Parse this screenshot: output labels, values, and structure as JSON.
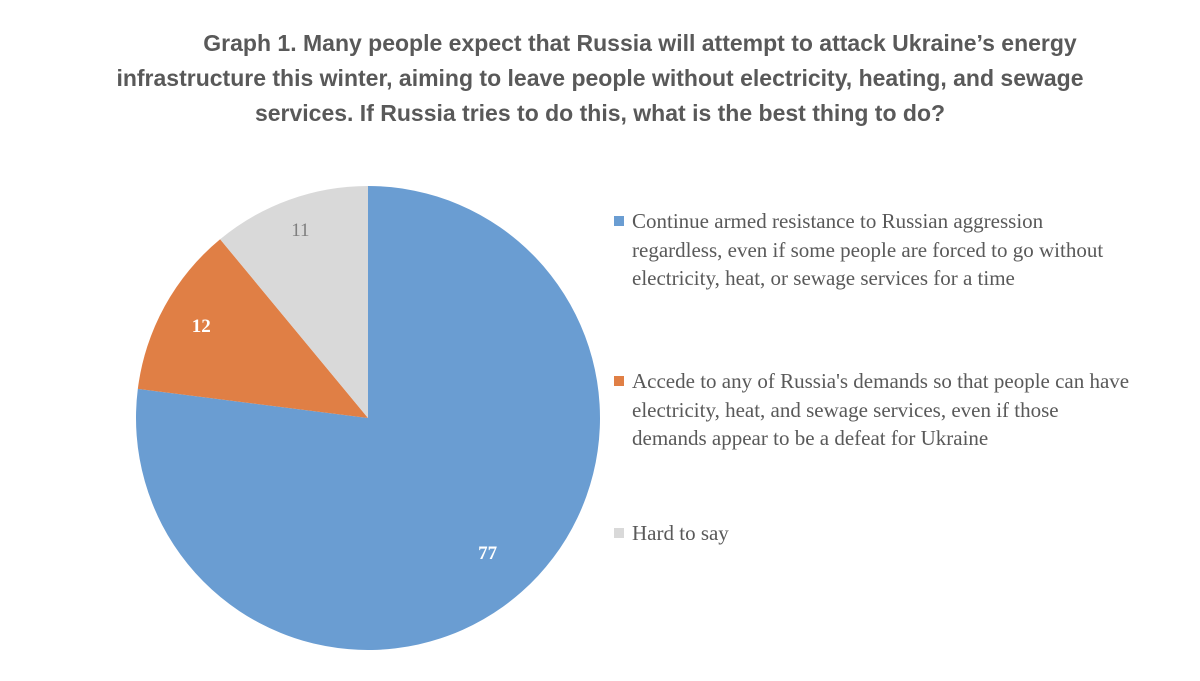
{
  "title": {
    "line1": "Graph 1. Many people expect that Russia will attempt to attack Ukraine’s energy",
    "line2": "infrastructure this winter, aiming to leave people without electricity, heating, and sewage",
    "line3": "services. If Russia tries to do this, what is the best thing to do?"
  },
  "chart_data": {
    "type": "pie",
    "title": "Graph 1. Many people expect that Russia will attempt to attack Ukraine’s energy infrastructure this winter, aiming to leave people without electricity, heating, and sewage services. If Russia tries to do this, what is the best thing to do?",
    "legend_position": "right",
    "start_angle_deg": 0,
    "direction": "clockwise",
    "slices": [
      {
        "label": "Continue armed resistance to Russian aggression regardless, even if some people are forced to go without electricity, heat, or sewage services for a time",
        "value": 77,
        "display_value": "77",
        "color": "#6a9dd2",
        "label_color": "#ffffff"
      },
      {
        "label": "Accede to any of Russia's demands so that people can have electricity, heat, and sewage services, even if those demands appear to be a defeat for Ukraine",
        "value": 12,
        "display_value": "12",
        "color": "#e07f45",
        "label_color": "#ffffff"
      },
      {
        "label": "Hard to say",
        "value": 11,
        "display_value": "11",
        "color": "#d9d9d9",
        "label_color": "#7f7f7f"
      }
    ]
  }
}
